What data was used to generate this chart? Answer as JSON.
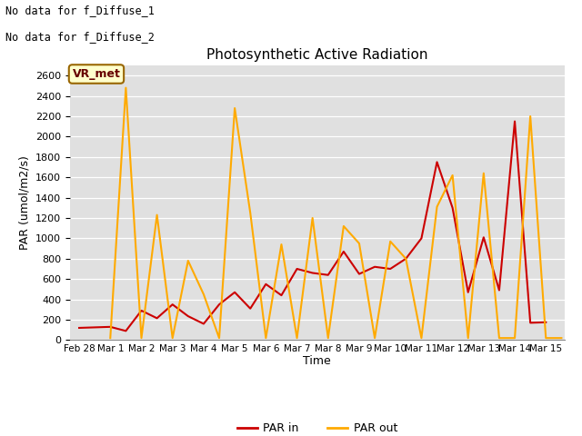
{
  "title": "Photosynthetic Active Radiation",
  "xlabel": "Time",
  "ylabel": "PAR (umol/m2/s)",
  "note_line1": "No data for f_Diffuse_1",
  "note_line2": "No data for f_Diffuse_2",
  "box_label": "VR_met",
  "ylim": [
    0,
    2700
  ],
  "yticks": [
    0,
    200,
    400,
    600,
    800,
    1000,
    1200,
    1400,
    1600,
    1800,
    2000,
    2200,
    2400,
    2600
  ],
  "legend_labels": [
    "PAR in",
    "PAR out"
  ],
  "par_in_color": "#cc0000",
  "par_out_color": "#ffaa00",
  "background_color": "#e0e0e0",
  "par_in_y": [
    120,
    130,
    90,
    290,
    215,
    350,
    235,
    160,
    350,
    470,
    310,
    550,
    440,
    700,
    660,
    640,
    870,
    650,
    720,
    700,
    800,
    1000,
    1750,
    1300,
    470,
    1010,
    490,
    2150,
    170,
    175
  ],
  "par_out_y": [
    20,
    2480,
    20,
    1230,
    20,
    780,
    450,
    20,
    2280,
    1250,
    20,
    940,
    20,
    1200,
    20,
    1120,
    950,
    20,
    970,
    800,
    20,
    1310,
    1620,
    20,
    1640,
    20,
    20,
    2200,
    20,
    20
  ],
  "xtick_labels": [
    "Feb 28",
    "Mar 1",
    "Mar 2",
    "Mar 3",
    "Mar 4",
    "Mar 5",
    "Mar 6",
    "Mar 7",
    "Mar 8",
    "Mar 9",
    "Mar 10",
    "Mar 11",
    "Mar 12",
    "Mar 13",
    "Mar 14",
    "Mar 15"
  ]
}
